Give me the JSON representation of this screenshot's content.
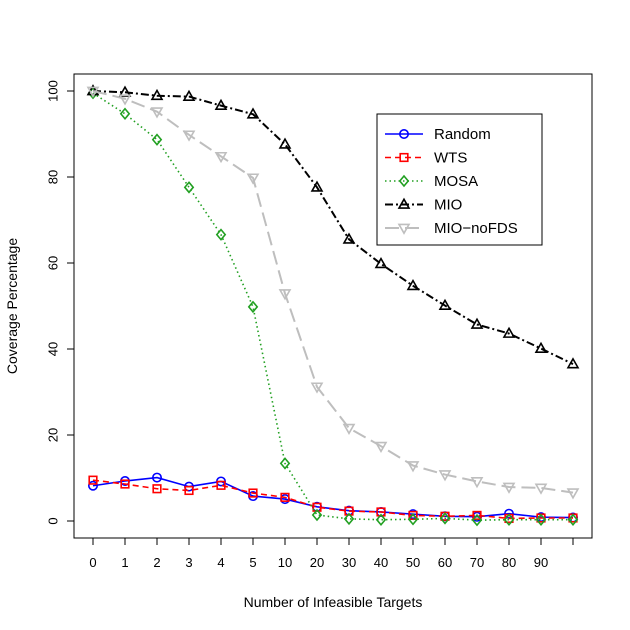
{
  "chart_data": {
    "type": "line",
    "title": "",
    "xlabel": "Number of Infeasible Targets",
    "ylabel": "Coverage Percentage",
    "categories": [
      "0",
      "1",
      "2",
      "3",
      "4",
      "5",
      "10",
      "20",
      "30",
      "40",
      "50",
      "60",
      "70",
      "80",
      "90",
      ""
    ],
    "ylim": [
      0,
      100
    ],
    "yticks": [
      0,
      20,
      40,
      60,
      80,
      100
    ],
    "grid": false,
    "legend": "top-right",
    "series": [
      {
        "name": "Random",
        "color": "#0000ff",
        "dash": "",
        "marker": "circle",
        "values": [
          8.2,
          9.3,
          10.1,
          8.0,
          9.2,
          5.8,
          5.1,
          3.3,
          2.4,
          2.1,
          1.6,
          1.1,
          1.0,
          1.7,
          0.9,
          0.8
        ]
      },
      {
        "name": "WTS",
        "color": "#ff0000",
        "dash": "6,4",
        "marker": "square",
        "values": [
          9.5,
          8.6,
          7.5,
          7.1,
          8.3,
          6.5,
          5.5,
          3.2,
          2.3,
          2.1,
          1.3,
          1.1,
          1.3,
          0.6,
          0.7,
          0.7
        ]
      },
      {
        "name": "MOSA",
        "color": "#22a022",
        "dash": "1.5,3",
        "marker": "diamond",
        "values": [
          99.5,
          94.7,
          88.7,
          77.6,
          66.6,
          49.8,
          13.4,
          1.4,
          0.5,
          0.3,
          0.4,
          0.6,
          0.2,
          0.3,
          0.3,
          0.3
        ]
      },
      {
        "name": "MIO",
        "color": "#000000",
        "dash": "8,3,2,3",
        "marker": "triangle-up",
        "values": [
          100,
          99.7,
          98.9,
          98.7,
          96.6,
          94.6,
          87.6,
          77.6,
          65.5,
          59.8,
          54.7,
          50.1,
          45.7,
          43.6,
          40.1,
          36.5
        ]
      },
      {
        "name": "MIO−noFDS",
        "color": "#bebebe",
        "dash": "14,6",
        "marker": "triangle-down",
        "values": [
          100,
          98.2,
          95.2,
          89.8,
          84.8,
          79.8,
          52.9,
          31.2,
          21.6,
          17.4,
          12.9,
          10.8,
          9.2,
          7.9,
          7.7,
          6.6
        ]
      }
    ]
  }
}
